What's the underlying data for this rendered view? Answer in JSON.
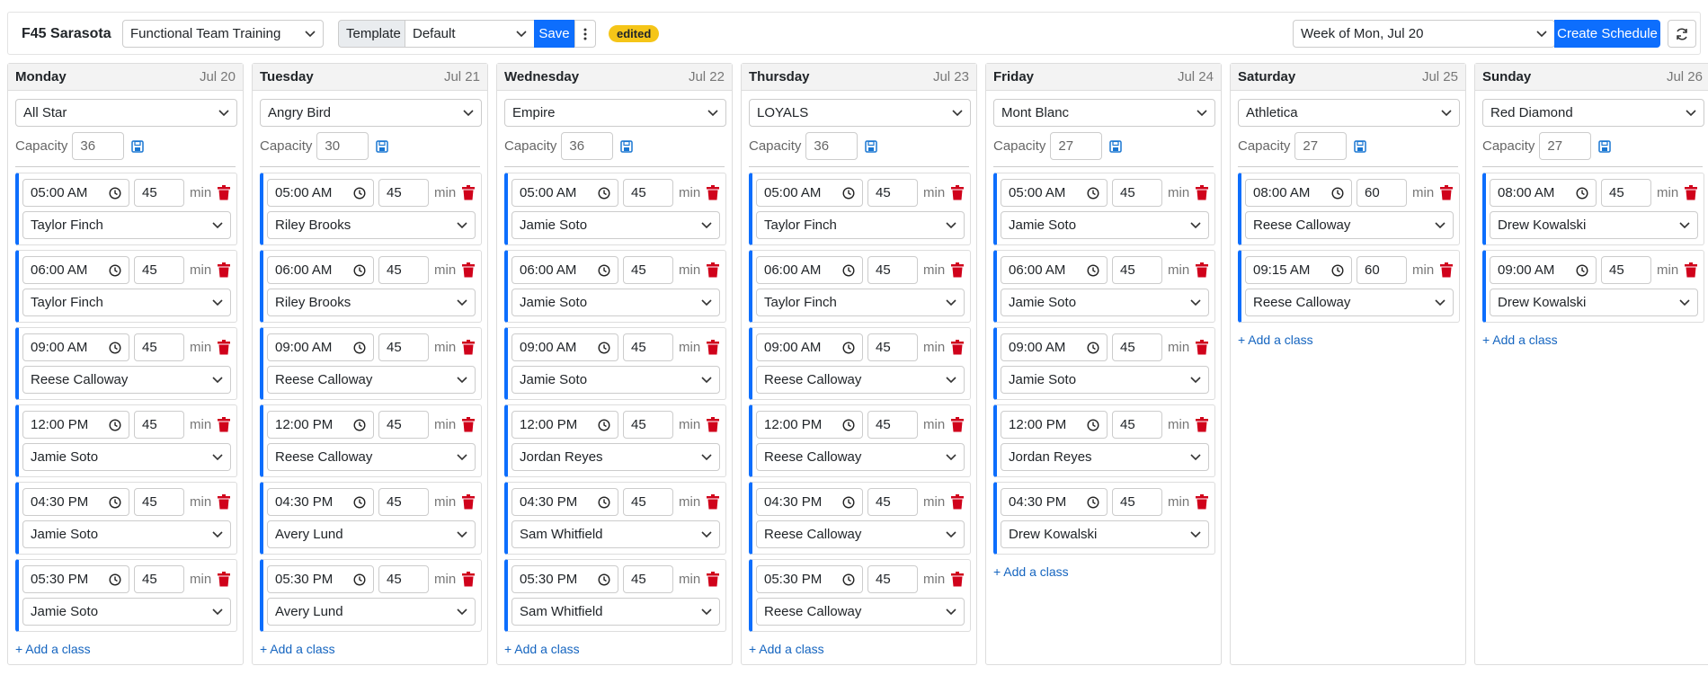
{
  "header": {
    "location": "F45 Sarasota",
    "program": "Functional Team Training",
    "template_label": "Template",
    "template": "Default",
    "save": "Save",
    "status": "edited",
    "week": "Week of Mon, Jul 20",
    "create": "Create Schedule"
  },
  "labels": {
    "capacity": "Capacity",
    "unit": "min",
    "add_class": "+ Add a class"
  },
  "days": [
    {
      "name": "Monday",
      "date": "Jul 20",
      "workout": "All Star",
      "capacity": 36,
      "classes": [
        {
          "time": "05:00 AM",
          "duration": 45,
          "coach": "Taylor Finch"
        },
        {
          "time": "06:00 AM",
          "duration": 45,
          "coach": "Taylor Finch"
        },
        {
          "time": "09:00 AM",
          "duration": 45,
          "coach": "Reese Calloway"
        },
        {
          "time": "12:00 PM",
          "duration": 45,
          "coach": "Jamie Soto"
        },
        {
          "time": "04:30 PM",
          "duration": 45,
          "coach": "Jamie Soto"
        },
        {
          "time": "05:30 PM",
          "duration": 45,
          "coach": "Jamie Soto"
        }
      ]
    },
    {
      "name": "Tuesday",
      "date": "Jul 21",
      "workout": "Angry Bird",
      "capacity": 30,
      "classes": [
        {
          "time": "05:00 AM",
          "duration": 45,
          "coach": "Riley Brooks"
        },
        {
          "time": "06:00 AM",
          "duration": 45,
          "coach": "Riley Brooks"
        },
        {
          "time": "09:00 AM",
          "duration": 45,
          "coach": "Reese Calloway"
        },
        {
          "time": "12:00 PM",
          "duration": 45,
          "coach": "Reese Calloway"
        },
        {
          "time": "04:30 PM",
          "duration": 45,
          "coach": "Avery Lund"
        },
        {
          "time": "05:30 PM",
          "duration": 45,
          "coach": "Avery Lund"
        }
      ]
    },
    {
      "name": "Wednesday",
      "date": "Jul 22",
      "workout": "Empire",
      "capacity": 36,
      "classes": [
        {
          "time": "05:00 AM",
          "duration": 45,
          "coach": "Jamie Soto"
        },
        {
          "time": "06:00 AM",
          "duration": 45,
          "coach": "Jamie Soto"
        },
        {
          "time": "09:00 AM",
          "duration": 45,
          "coach": "Jamie Soto"
        },
        {
          "time": "12:00 PM",
          "duration": 45,
          "coach": "Jordan Reyes"
        },
        {
          "time": "04:30 PM",
          "duration": 45,
          "coach": "Sam Whitfield"
        },
        {
          "time": "05:30 PM",
          "duration": 45,
          "coach": "Sam Whitfield"
        }
      ]
    },
    {
      "name": "Thursday",
      "date": "Jul 23",
      "workout": "LOYALS",
      "capacity": 36,
      "classes": [
        {
          "time": "05:00 AM",
          "duration": 45,
          "coach": "Taylor Finch"
        },
        {
          "time": "06:00 AM",
          "duration": 45,
          "coach": "Taylor Finch"
        },
        {
          "time": "09:00 AM",
          "duration": 45,
          "coach": "Reese Calloway"
        },
        {
          "time": "12:00 PM",
          "duration": 45,
          "coach": "Reese Calloway"
        },
        {
          "time": "04:30 PM",
          "duration": 45,
          "coach": "Reese Calloway"
        },
        {
          "time": "05:30 PM",
          "duration": 45,
          "coach": "Reese Calloway"
        }
      ]
    },
    {
      "name": "Friday",
      "date": "Jul 24",
      "workout": "Mont Blanc",
      "capacity": 27,
      "classes": [
        {
          "time": "05:00 AM",
          "duration": 45,
          "coach": "Jamie Soto"
        },
        {
          "time": "06:00 AM",
          "duration": 45,
          "coach": "Jamie Soto"
        },
        {
          "time": "09:00 AM",
          "duration": 45,
          "coach": "Jamie Soto"
        },
        {
          "time": "12:00 PM",
          "duration": 45,
          "coach": "Jordan Reyes"
        },
        {
          "time": "04:30 PM",
          "duration": 45,
          "coach": "Drew Kowalski"
        }
      ]
    },
    {
      "name": "Saturday",
      "date": "Jul 25",
      "workout": "Athletica",
      "capacity": 27,
      "classes": [
        {
          "time": "08:00 AM",
          "duration": 60,
          "coach": "Reese Calloway"
        },
        {
          "time": "09:15 AM",
          "duration": 60,
          "coach": "Reese Calloway"
        }
      ]
    },
    {
      "name": "Sunday",
      "date": "Jul 26",
      "workout": "Red Diamond",
      "capacity": 27,
      "classes": [
        {
          "time": "08:00 AM",
          "duration": 45,
          "coach": "Drew Kowalski"
        },
        {
          "time": "09:00 AM",
          "duration": 45,
          "coach": "Drew Kowalski"
        }
      ]
    }
  ]
}
